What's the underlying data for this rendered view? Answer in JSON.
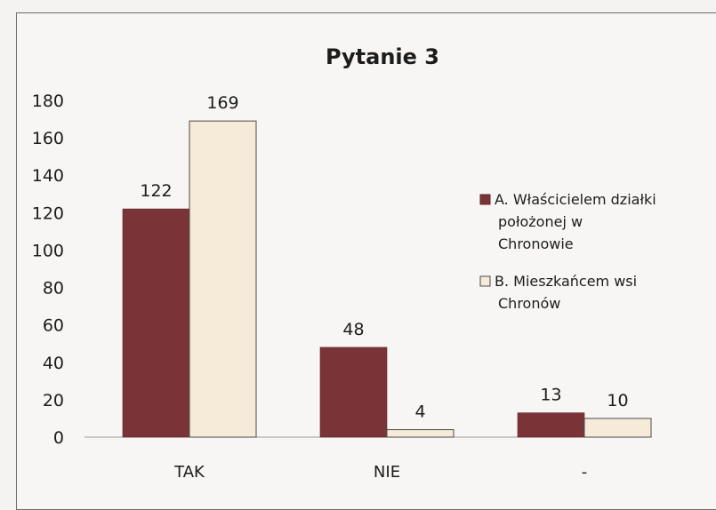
{
  "chart_data": {
    "type": "bar",
    "title": "Pytanie 3",
    "categories": [
      "TAK",
      "NIE",
      "-"
    ],
    "series": [
      {
        "name": "A. Właścicielem działki położonej w Chronowie",
        "values": [
          122,
          48,
          13
        ],
        "color": "#7a3438"
      },
      {
        "name": "B. Mieszkańcem wsi Chronów",
        "values": [
          169,
          4,
          10
        ],
        "color": "#f6ead9"
      }
    ],
    "ylim": [
      0,
      180
    ],
    "yticks": [
      "0",
      "20",
      "40",
      "60",
      "80",
      "100",
      "120",
      "140",
      "160",
      "180"
    ],
    "data_labels": [
      [
        "122",
        "48",
        "13"
      ],
      [
        "169",
        "4",
        "10"
      ]
    ],
    "legend": {
      "position": "right",
      "entries": [
        [
          "A. Właścicielem działki",
          "położonej w",
          "Chronowie"
        ],
        [
          "B. Mieszkańcem wsi",
          "Chronów"
        ]
      ]
    },
    "grid": false
  }
}
